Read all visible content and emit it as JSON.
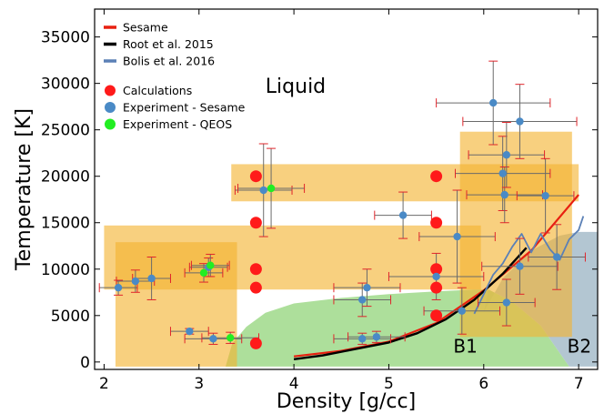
{
  "chart_data": {
    "type": "scatter",
    "xlabel": "Density [g/cc]",
    "ylabel": "Temperature [K]",
    "xlim": [
      1.9,
      7.2
    ],
    "ylim": [
      -800,
      38000
    ],
    "xticks": [
      2,
      3,
      4,
      5,
      6,
      7
    ],
    "yticks": [
      0,
      5000,
      10000,
      15000,
      20000,
      25000,
      30000,
      35000
    ],
    "grid": false,
    "legend_placement": "top-left",
    "colors": {
      "sesame": "#e82010",
      "root": "#000000",
      "bolis": "#5b80b6",
      "calculations": "#ff1a1a",
      "experiment_sesame": "#4a8ac6",
      "experiment_qeos": "#22ee22",
      "band": "#f4b330",
      "errorbar": "#e0242a",
      "region_b1": "#9fd98a",
      "region_b2": "#9ab3c3"
    },
    "legend": [
      {
        "label": "Sesame",
        "kind": "line",
        "color_key": "sesame"
      },
      {
        "label": "Root et al. 2015",
        "kind": "line",
        "color_key": "root"
      },
      {
        "label": "Bolis et al. 2016",
        "kind": "line",
        "color_key": "bolis"
      },
      {
        "label": "Calculations",
        "kind": "marker",
        "color_key": "calculations"
      },
      {
        "label": "Experiment - Sesame",
        "kind": "marker",
        "color_key": "experiment_sesame"
      },
      {
        "label": "Experiment - QEOS",
        "kind": "marker",
        "color_key": "experiment_qeos"
      }
    ],
    "annotations": [
      {
        "text": "Liquid",
        "x": 3.7,
        "y": 29000,
        "size": 22
      },
      {
        "text": "B1",
        "x": 5.68,
        "y": 1000,
        "size": 20
      },
      {
        "text": "B2",
        "x": 6.88,
        "y": 1000,
        "size": 20
      }
    ],
    "bands": [
      {
        "x": [
          2.0,
          5.97
        ],
        "y": [
          7800,
          14700
        ]
      },
      {
        "x": [
          2.12,
          3.4
        ],
        "y": [
          -500,
          12900
        ]
      },
      {
        "x": [
          3.34,
          7.0
        ],
        "y": [
          17300,
          21300
        ]
      },
      {
        "x": [
          5.75,
          6.93
        ],
        "y": [
          2700,
          24800
        ]
      }
    ],
    "regions": {
      "b1_boundary": [
        [
          3.28,
          -500
        ],
        [
          3.35,
          2000
        ],
        [
          3.5,
          3800
        ],
        [
          3.7,
          5300
        ],
        [
          4.0,
          6300
        ],
        [
          4.5,
          6900
        ],
        [
          5.0,
          7300
        ],
        [
          5.5,
          7600
        ],
        [
          5.9,
          7800
        ],
        [
          6.05,
          7800
        ],
        [
          6.3,
          6500
        ],
        [
          6.6,
          3900
        ],
        [
          6.9,
          -500
        ]
      ],
      "b2_boundary": [
        [
          6.0,
          5400
        ],
        [
          6.2,
          9000
        ],
        [
          6.5,
          12000
        ],
        [
          6.8,
          13600
        ],
        [
          7.0,
          14000
        ],
        [
          7.2,
          14000
        ],
        [
          7.2,
          -500
        ],
        [
          6.9,
          -500
        ],
        [
          6.6,
          3900
        ],
        [
          6.3,
          6500
        ],
        [
          6.05,
          7800
        ]
      ]
    },
    "series": [
      {
        "name": "Sesame",
        "kind": "line",
        "x": [
          4.0,
          4.5,
          5.0,
          5.5,
          6.0,
          6.5,
          7.0
        ],
        "y": [
          600,
          1200,
          2200,
          4200,
          7700,
          12000,
          18000
        ]
      },
      {
        "name": "Root et al. 2015",
        "kind": "line",
        "x": [
          4.0,
          4.3,
          4.6,
          5.0,
          5.3,
          5.6,
          5.9,
          6.2,
          6.45
        ],
        "y": [
          300,
          700,
          1300,
          2100,
          3100,
          4600,
          6700,
          9500,
          12300
        ]
      },
      {
        "name": "Bolis et al. 2016",
        "kind": "line",
        "x": [
          5.9,
          6.0,
          6.1,
          6.2,
          6.3,
          6.4,
          6.5,
          6.6,
          6.7,
          6.8,
          6.9,
          7.0,
          7.05
        ],
        "y": [
          5200,
          7300,
          9400,
          10600,
          12400,
          13800,
          11800,
          13800,
          12100,
          11000,
          13200,
          14200,
          15700
        ]
      },
      {
        "name": "Calculations",
        "kind": "scatter",
        "points": [
          [
            3.6,
            20000
          ],
          [
            3.6,
            15000
          ],
          [
            3.6,
            10000
          ],
          [
            3.6,
            8000
          ],
          [
            3.6,
            2000
          ],
          [
            5.5,
            20000
          ],
          [
            5.5,
            15000
          ],
          [
            5.5,
            10000
          ],
          [
            5.5,
            8000
          ],
          [
            5.5,
            5000
          ]
        ]
      },
      {
        "name": "Experiment - Sesame",
        "kind": "scatter",
        "points": [
          {
            "x": 2.15,
            "y": 8000,
            "xerr": 0.2,
            "yerr": 800
          },
          {
            "x": 2.33,
            "y": 8700,
            "xerr": 0.2,
            "yerr": 1200
          },
          {
            "x": 2.5,
            "y": 9000,
            "xerr": 0.2,
            "yerr": 2300
          },
          {
            "x": 2.9,
            "y": 3300,
            "xerr": 0.2,
            "yerr": 300
          },
          {
            "x": 3.1,
            "y": 10200,
            "xerr": 0.2,
            "yerr": 1000
          },
          {
            "x": 3.15,
            "y": 2500,
            "xerr": 0.3,
            "yerr": 600
          },
          {
            "x": 3.68,
            "y": 18500,
            "xerr": 0.3,
            "yerr": 5000
          },
          {
            "x": 4.72,
            "y": 6700,
            "xerr": 0.3,
            "yerr": 1800
          },
          {
            "x": 4.77,
            "y": 8000,
            "xerr": 0.35,
            "yerr": 2000
          },
          {
            "x": 4.72,
            "y": 2500,
            "xerr": 0.3,
            "yerr": 600
          },
          {
            "x": 4.87,
            "y": 2700,
            "xerr": 0.3,
            "yerr": 600
          },
          {
            "x": 5.15,
            "y": 15800,
            "xerr": 0.3,
            "yerr": 2500
          },
          {
            "x": 5.5,
            "y": 9200,
            "xerr": 0.5,
            "yerr": 2500
          },
          {
            "x": 5.72,
            "y": 13500,
            "xerr": 0.4,
            "yerr": 5000
          },
          {
            "x": 5.77,
            "y": 5500,
            "xerr": 0.4,
            "yerr": 2500
          },
          {
            "x": 6.1,
            "y": 27900,
            "xerr": 0.6,
            "yerr": 4500
          },
          {
            "x": 6.2,
            "y": 20300,
            "xerr": 0.5,
            "yerr": 4000
          },
          {
            "x": 6.22,
            "y": 18000,
            "xerr": 0.4,
            "yerr": 3000
          },
          {
            "x": 6.24,
            "y": 22300,
            "xerr": 0.4,
            "yerr": 3500
          },
          {
            "x": 6.24,
            "y": 6400,
            "xerr": 0.3,
            "yerr": 2500
          },
          {
            "x": 6.38,
            "y": 25900,
            "xerr": 0.6,
            "yerr": 4000
          },
          {
            "x": 6.38,
            "y": 10300,
            "xerr": 0.4,
            "yerr": 3000
          },
          {
            "x": 6.65,
            "y": 17900,
            "xerr": 0.3,
            "yerr": 4000
          },
          {
            "x": 6.77,
            "y": 11300,
            "xerr": 0.3,
            "yerr": 3500
          }
        ]
      },
      {
        "name": "Experiment - QEOS",
        "kind": "scatter",
        "points": [
          {
            "x": 3.05,
            "y": 9600,
            "xerr": 0.2,
            "yerr": 1000
          },
          {
            "x": 3.12,
            "y": 10400,
            "xerr": 0.2,
            "yerr": 1200
          },
          {
            "x": 3.33,
            "y": 2600,
            "xerr": 0.3,
            "yerr": 600
          },
          {
            "x": 3.76,
            "y": 18700,
            "xerr": 0.35,
            "yerr": 4300
          }
        ]
      }
    ]
  }
}
